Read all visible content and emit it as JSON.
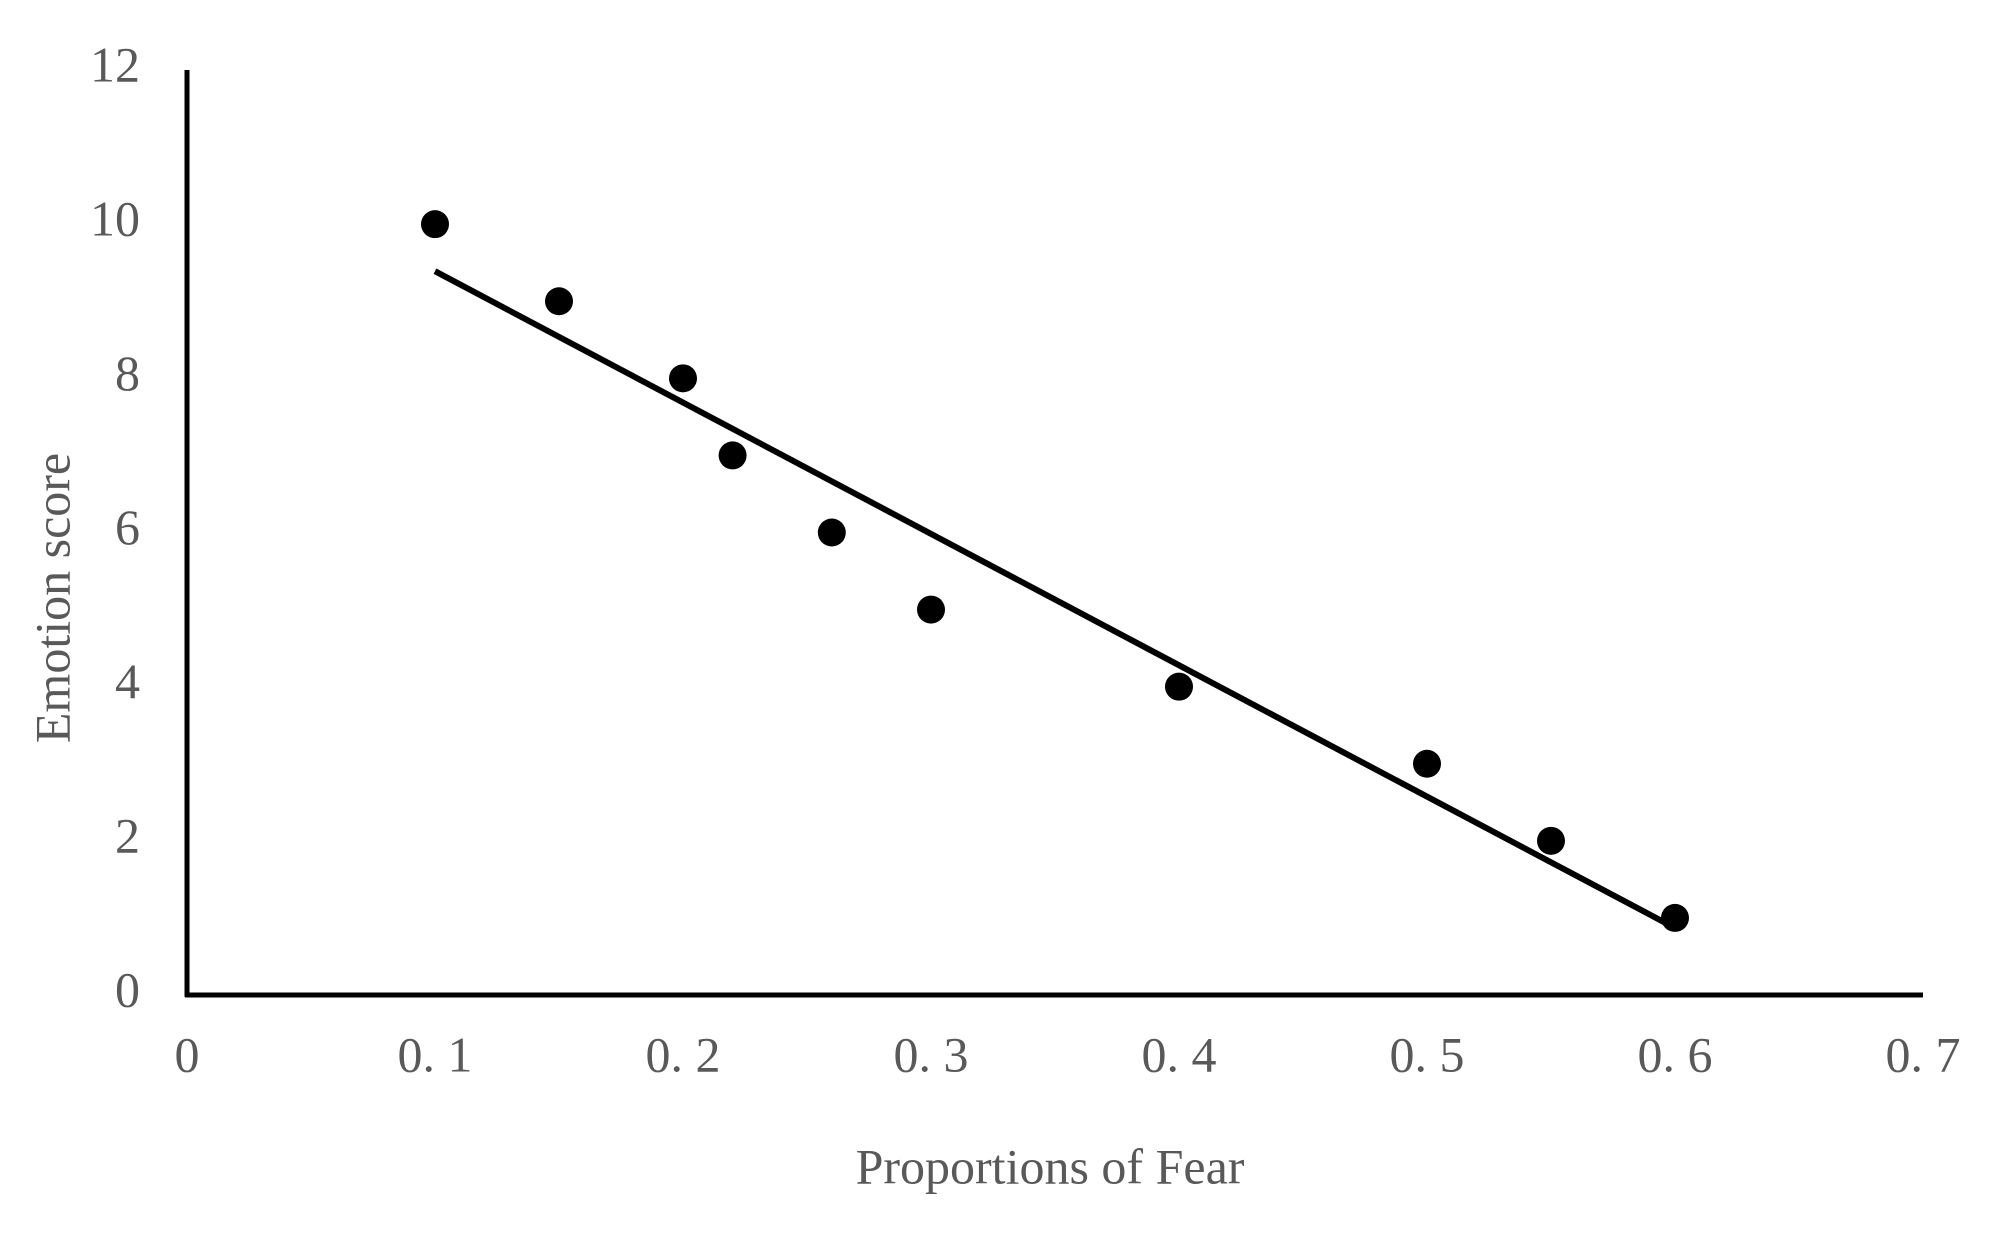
{
  "chart_data": {
    "type": "scatter",
    "x_label": "Proportions of Fear",
    "y_label": "Emotion score",
    "x": [
      0.1,
      0.15,
      0.2,
      0.22,
      0.26,
      0.3,
      0.4,
      0.5,
      0.55,
      0.6
    ],
    "values": [
      10,
      9,
      8,
      7,
      6,
      5,
      4,
      3,
      2,
      1
    ],
    "color": "#000000",
    "trendline": {
      "x": [
        0.1,
        0.6
      ],
      "values": [
        9.39,
        0.87
      ],
      "color": "#000000"
    },
    "xlim": [
      0,
      0.7
    ],
    "xticks": [
      0,
      {
        "value": 0.1,
        "label": "0. 1"
      },
      {
        "value": 0.2,
        "label": "0. 2"
      },
      {
        "value": 0.3,
        "label": "0. 3"
      },
      {
        "value": 0.4,
        "label": "0. 4"
      },
      {
        "value": 0.5,
        "label": "0. 5"
      },
      {
        "value": 0.6,
        "label": "0. 6"
      },
      {
        "value": 0.7,
        "label": "0. 7"
      }
    ],
    "ylim": [
      0,
      12
    ],
    "yticks": [
      0,
      2,
      4,
      6,
      8,
      10,
      12
    ],
    "grid": false
  }
}
